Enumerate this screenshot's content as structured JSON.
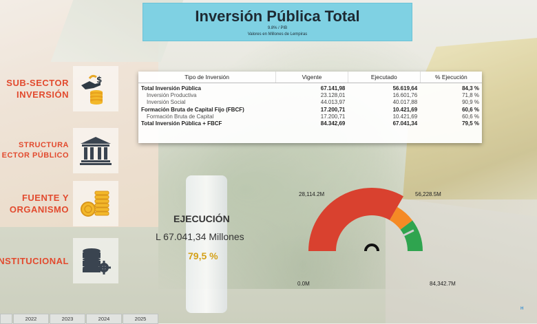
{
  "header": {
    "title": "Inversión Pública Total",
    "subtitle1": "9.8% / PIB",
    "subtitle2": "Valores en Millones de Lempiras"
  },
  "nav": [
    {
      "line1": "SUB-SECTOR",
      "line2": "INVERSIÓN",
      "icon": "hand-coins-icon"
    },
    {
      "line1": "STRUCTURA",
      "line2": "ECTOR PÚBLICO",
      "icon": "bank-building-icon"
    },
    {
      "line1": "FUENTE Y",
      "line2": "ORGANISMO",
      "icon": "coins-stack-icon"
    },
    {
      "line1": "INSTITUCIONAL",
      "line2": "",
      "icon": "database-gear-icon"
    }
  ],
  "table": {
    "headers": [
      "Tipo de Inversión",
      "Vigente",
      "Ejecutado",
      "% Ejecución"
    ],
    "rows": [
      {
        "name": "Total Inversión Pública",
        "vigente": "67.141,98",
        "ejecutado": "56.619,64",
        "pct": "84,3 %",
        "style": "bold"
      },
      {
        "name": "Inversión Productiva",
        "vigente": "23.128,01",
        "ejecutado": "16.601,76",
        "pct": "71,8 %",
        "style": "sub"
      },
      {
        "name": "Inversión Social",
        "vigente": "44.013,97",
        "ejecutado": "40.017,88",
        "pct": "90,9 %",
        "style": "sub"
      },
      {
        "name": "Formación Bruta de Capital Fijo (FBCF)",
        "vigente": "17.200,71",
        "ejecutado": "10.421,69",
        "pct": "60,6 %",
        "style": "bold"
      },
      {
        "name": "Formación Bruta de Capital",
        "vigente": "17.200,71",
        "ejecutado": "10.421,69",
        "pct": "60,6 %",
        "style": "sub"
      },
      {
        "name": "Total Inversión Pública + FBCF",
        "vigente": "84.342,69",
        "ejecutado": "67.041,34",
        "pct": "79,5 %",
        "style": "bold"
      }
    ]
  },
  "ejecucion": {
    "title": "EJECUCIÓN",
    "amount": "L 67.041,34  Millones",
    "percent": "79,5 %"
  },
  "gauge": {
    "min_label": "0.0M",
    "max_label": "84,342.7M",
    "t1_label": "28,114.2M",
    "t2_label": "56,228.5M",
    "min": 0,
    "max": 84342.7,
    "t1": 28114.2,
    "t2": 56228.5,
    "value": 67041.34,
    "target": 72000,
    "colors": {
      "red": "#d9412f",
      "orange": "#f58a25",
      "green": "#2fa44f"
    }
  },
  "years": [
    "",
    "2022",
    "2023",
    "2024",
    "2025"
  ],
  "logo_text": "H"
}
